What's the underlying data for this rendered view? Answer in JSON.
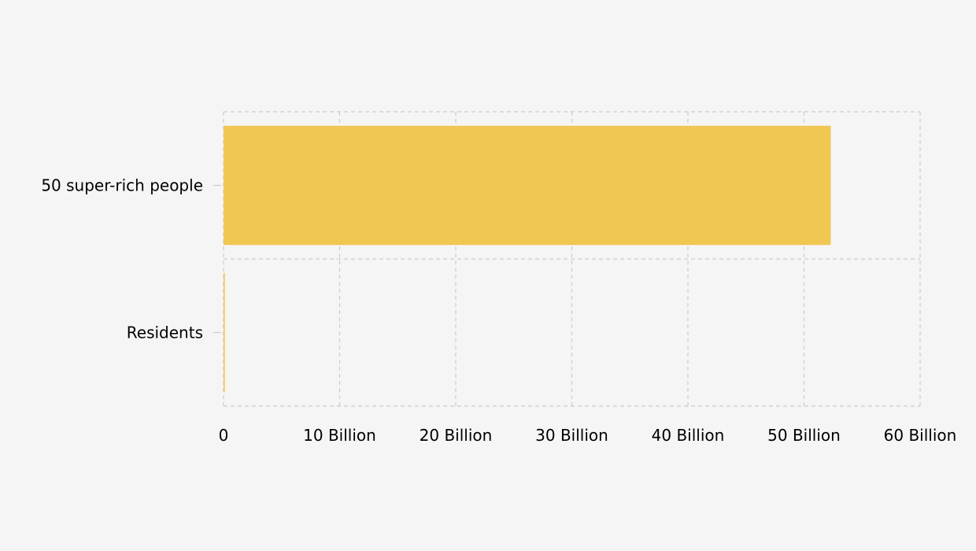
{
  "chart_data": {
    "type": "bar",
    "orientation": "horizontal",
    "categories": [
      "50 super-rich people",
      "Residents"
    ],
    "series": [
      {
        "values": [
          52300000000,
          110000000
        ]
      }
    ],
    "xlim": [
      0,
      60000000000
    ],
    "x_ticks": [
      0,
      10000000000,
      20000000000,
      30000000000,
      40000000000,
      50000000000,
      60000000000
    ],
    "x_tick_labels": [
      "0",
      "10 Billion",
      "20 Billion",
      "30 Billion",
      "40 Billion",
      "50 Billion",
      "60 Billion"
    ],
    "grid": true,
    "grid_style": "dashed",
    "title": "",
    "xlabel": "",
    "ylabel": "",
    "colors": {
      "bar": "#f0c752",
      "grid": "#cccccc",
      "background": "#f5f5f5",
      "text": "#000000"
    }
  }
}
